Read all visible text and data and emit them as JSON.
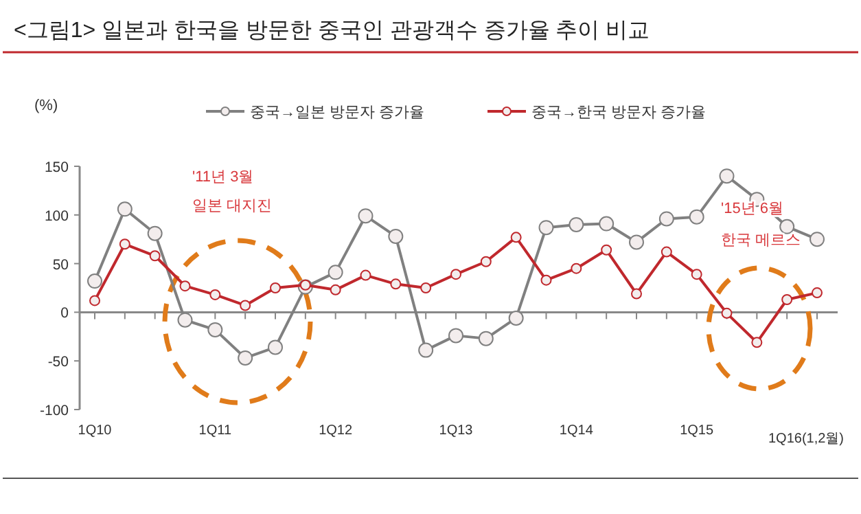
{
  "chart_data": {
    "type": "line",
    "title": "<그림1> 일본과 한국을 방문한 중국인 관광객수 증가율 추이 비교",
    "ylabel": "(%)",
    "categories": [
      "1Q10",
      null,
      null,
      null,
      "1Q11",
      null,
      null,
      null,
      "1Q12",
      null,
      null,
      null,
      "1Q13",
      null,
      null,
      null,
      "1Q14",
      null,
      null,
      null,
      "1Q15",
      null,
      null,
      null,
      "1Q16(1,2월)"
    ],
    "series": [
      {
        "name": "중국→일본 방문자 증가율",
        "color": "#808080",
        "values": [
          32,
          106,
          81,
          -8,
          -18,
          -47,
          -36,
          26,
          41,
          99,
          78,
          -39,
          -24,
          -27,
          -6,
          87,
          90,
          91,
          72,
          96,
          98,
          140,
          116,
          88,
          75
        ]
      },
      {
        "name": "중국→한국 방문자 증가율",
        "color": "#c0282d",
        "values": [
          12,
          70,
          58,
          27,
          18,
          7,
          25,
          28,
          23,
          38,
          29,
          25,
          39,
          52,
          77,
          33,
          45,
          64,
          19,
          62,
          39,
          -1,
          -31,
          13,
          20
        ]
      }
    ],
    "ylim": [
      -100,
      150
    ],
    "yticks": [
      -100,
      -50,
      0,
      50,
      100,
      150
    ],
    "marker": "circle",
    "legend": "top",
    "annotations": [
      "'11년 3월",
      "일본 대지진",
      "'15년 6월",
      "한국 메르스"
    ]
  }
}
